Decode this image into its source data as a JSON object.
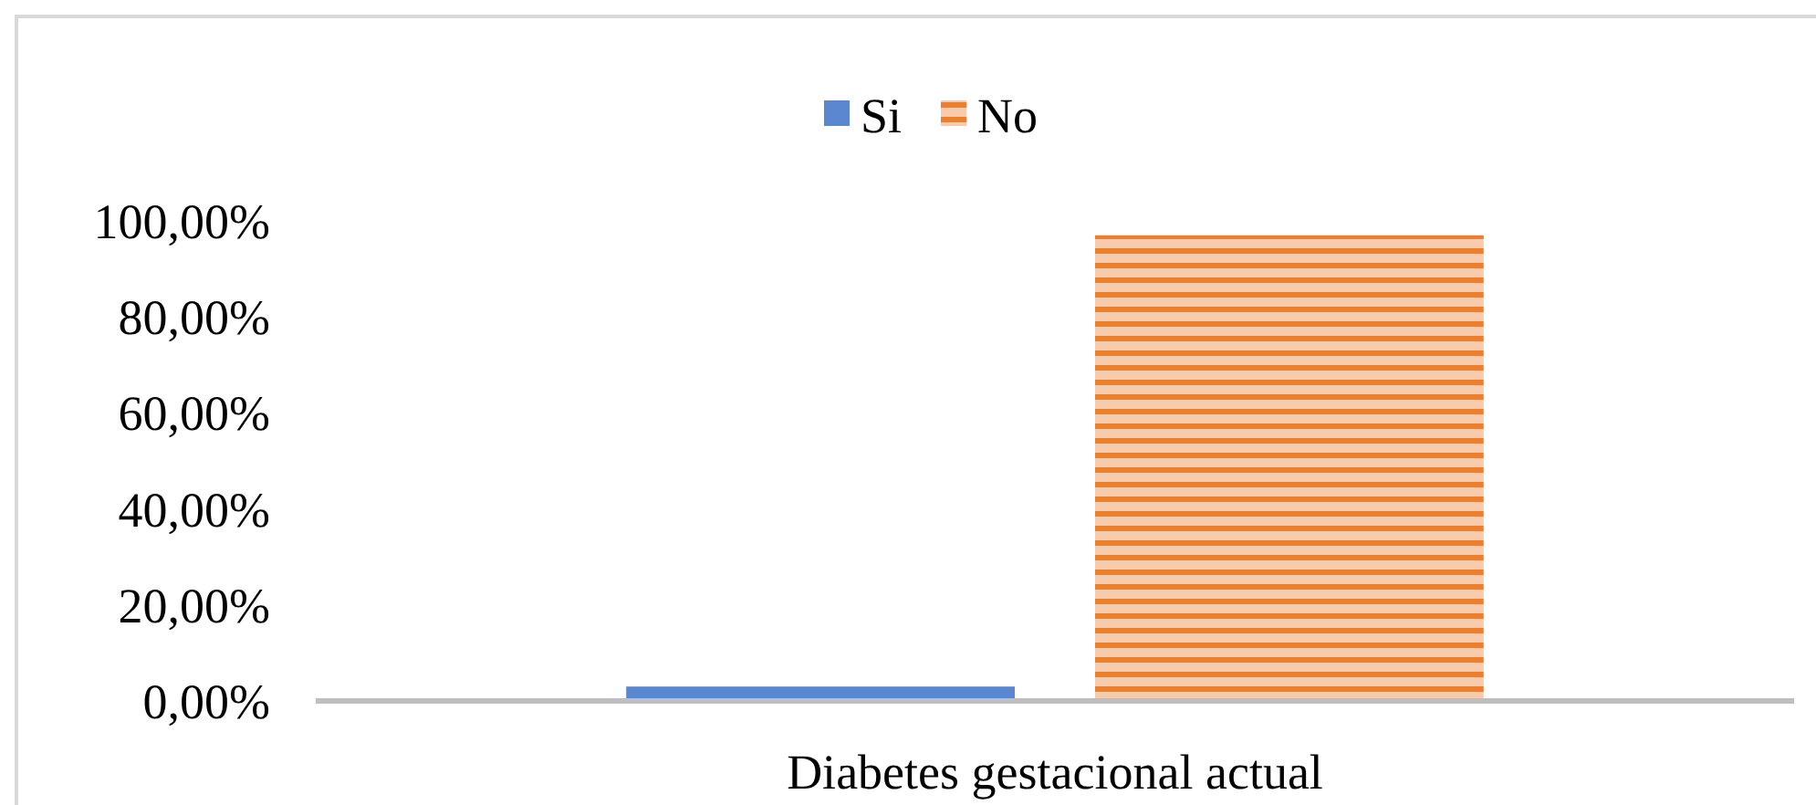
{
  "chart_data": {
    "type": "bar",
    "categories": [
      "Diabetes gestacional actual"
    ],
    "series": [
      {
        "name": "Si",
        "color": "#5b87d0",
        "values": [
          3
        ]
      },
      {
        "name": "No",
        "color": "#ed7d31",
        "values": [
          97
        ]
      }
    ],
    "ylim": [
      0,
      100
    ],
    "yticks": [
      {
        "value": 0,
        "label": "0,00%"
      },
      {
        "value": 20,
        "label": "20,00%"
      },
      {
        "value": 40,
        "label": "40,00%"
      },
      {
        "value": 60,
        "label": "60,00%"
      },
      {
        "value": 80,
        "label": "80,00%"
      },
      {
        "value": 100,
        "label": "100,00%"
      }
    ],
    "grid": false,
    "legend": "top"
  }
}
